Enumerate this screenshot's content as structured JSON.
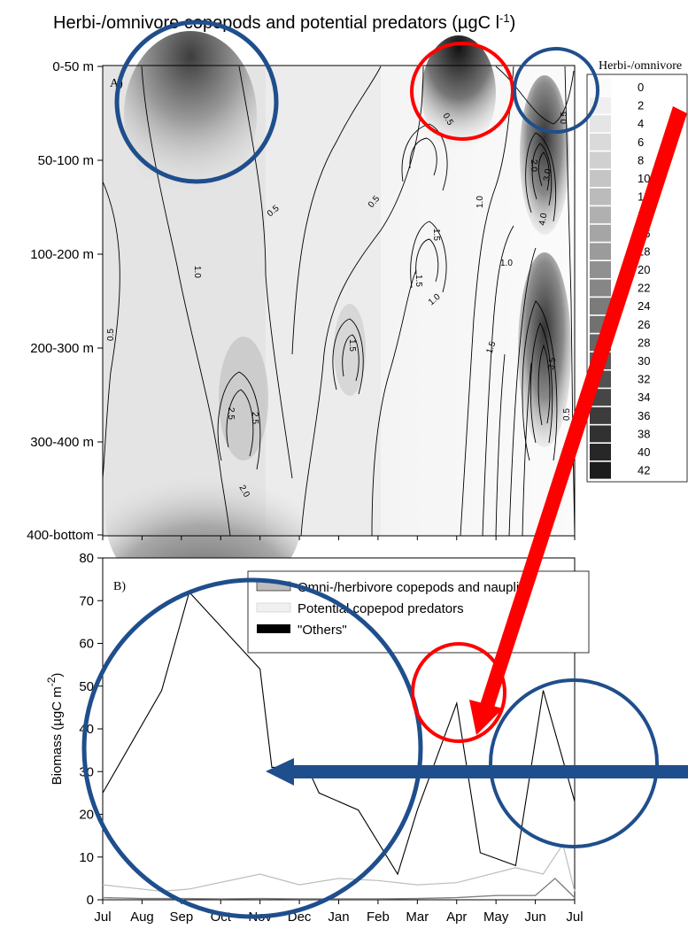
{
  "figure_title": "Herbi-/omnivore copepods and potential predators (µgC l",
  "figure_title_sup": "-1",
  "figure_title_close": ")",
  "colors": {
    "annotation_blue": "#1f4e8c",
    "annotation_red": "#ff0000",
    "line": "#000000",
    "predators": "#bdbdbd",
    "herbivores": "#808080"
  },
  "chart_data": [
    {
      "type": "heatmap",
      "panel_label": "A)",
      "months": [
        "Jul",
        "Aug",
        "Sep",
        "Oct",
        "Nov",
        "Dec",
        "Jan",
        "Feb",
        "Mar",
        "Apr",
        "May",
        "Jun",
        "Jul"
      ],
      "depth_layers": [
        "0-50 m",
        "50-100 m",
        "100-200 m",
        "200-300 m",
        "300-400 m",
        "400-bottom"
      ],
      "colorbar": {
        "title": "Herbi-/omnivore copepods",
        "levels": [
          0,
          2,
          4,
          6,
          8,
          10,
          12,
          14,
          16,
          18,
          20,
          22,
          24,
          26,
          28,
          30,
          32,
          34,
          36,
          38,
          40,
          42
        ]
      },
      "contour_labels": [
        "0.5",
        "0.5",
        "0.5",
        "0.5",
        "1.0",
        "1.0",
        "1.0",
        "1.0",
        "1.5",
        "1.5",
        "1.5",
        "1.5",
        "2.0",
        "2.0",
        "2.5",
        "2.5",
        "3.0",
        "3.5",
        "4.0",
        "0.5",
        "0.5"
      ]
    },
    {
      "type": "line",
      "panel_label": "B)",
      "ylabel": "Biomass (µgC m",
      "ylabel_sup": "-2",
      "ylabel_close": ")",
      "ylim": [
        0,
        80
      ],
      "yticks": [
        0,
        10,
        20,
        30,
        40,
        50,
        60,
        70,
        80
      ],
      "xticks": [
        "Jul",
        "Aug",
        "Sep",
        "Oct",
        "Nov",
        "Dec",
        "Jan",
        "Feb",
        "Mar",
        "Apr",
        "May",
        "Jun",
        "Jul"
      ],
      "x_range": [
        0,
        12
      ],
      "series": [
        {
          "name": "Omni-/herbivore copepods and nauplia",
          "x": [
            0,
            1.5,
            2.2,
            4,
            4.3,
            5.2,
            5.5,
            6.5,
            7.5,
            8,
            9,
            9.6,
            10.5,
            11.2,
            12
          ],
          "values": [
            25,
            49,
            72,
            54,
            31,
            31,
            25,
            21,
            6,
            21,
            46,
            11,
            8,
            49,
            23
          ]
        },
        {
          "name": "Potential copepod predators",
          "x": [
            0,
            1.5,
            2.2,
            4,
            5,
            6,
            7,
            8,
            9,
            10.5,
            11.2,
            11.7,
            12
          ],
          "values": [
            3.5,
            2,
            2.5,
            6,
            3.5,
            5,
            4.5,
            3.5,
            4,
            7.5,
            6,
            13,
            2
          ]
        },
        {
          "name": "\"Others\"",
          "x": [
            0,
            1,
            2,
            3,
            4,
            5,
            6,
            7,
            8,
            9,
            10,
            11,
            11.5,
            12
          ],
          "values": [
            0.5,
            0.3,
            0.3,
            0.2,
            0.3,
            0.2,
            0.2,
            0.2,
            0.3,
            0.5,
            1,
            1,
            5,
            0.5
          ]
        }
      ]
    }
  ]
}
